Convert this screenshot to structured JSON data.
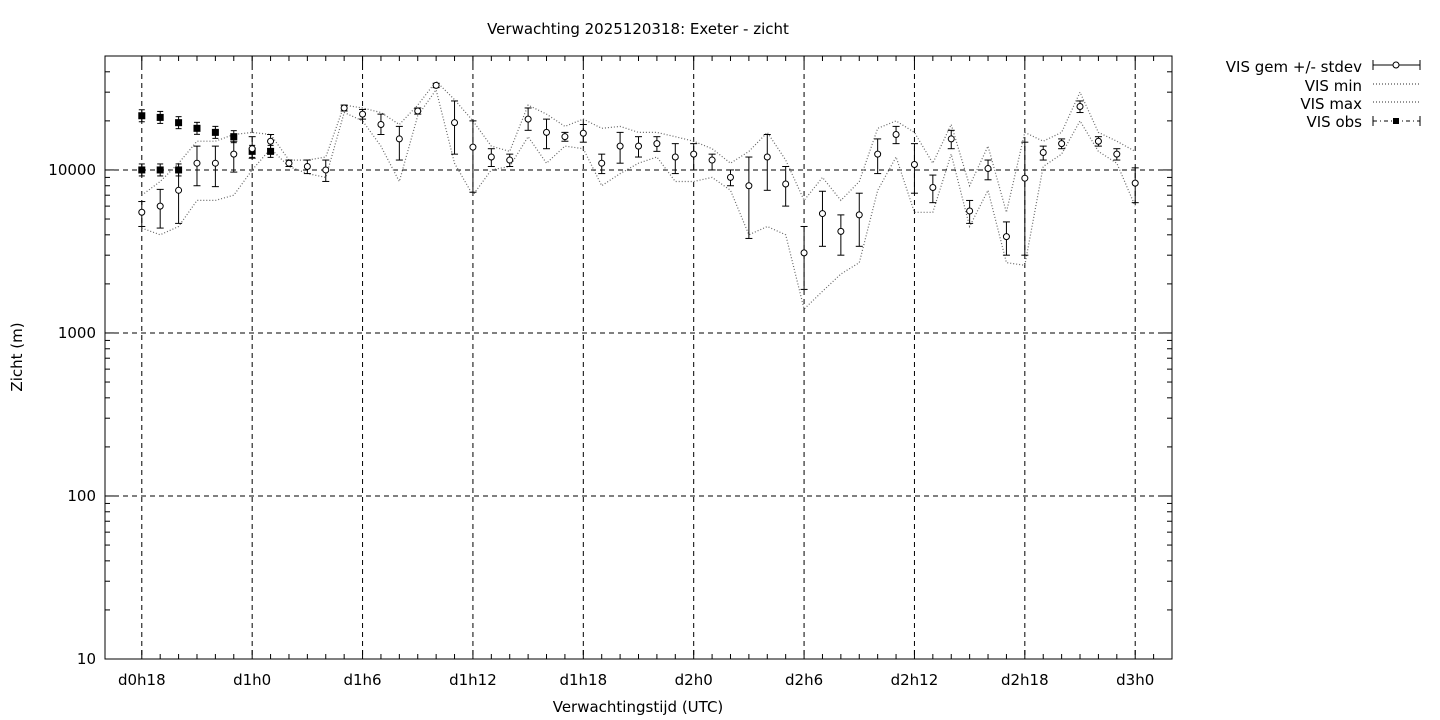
{
  "chart_data": {
    "type": "line",
    "title": "Verwachting 2025120318: Exeter - zicht",
    "xlabel": "Verwachtingstijd (UTC)",
    "ylabel": "Zicht (m)",
    "yscale": "log",
    "ylim": [
      10,
      50000
    ],
    "xlim": [
      -2,
      56
    ],
    "y_ticks": [
      "10",
      "100",
      "1000",
      "10000"
    ],
    "x_ticks": [
      {
        "h": 0,
        "label": "d0h18"
      },
      {
        "h": 6,
        "label": "d1h0"
      },
      {
        "h": 12,
        "label": "d1h6"
      },
      {
        "h": 18,
        "label": "d1h12"
      },
      {
        "h": 24,
        "label": "d1h18"
      },
      {
        "h": 30,
        "label": "d2h0"
      },
      {
        "h": 36,
        "label": "d2h6"
      },
      {
        "h": 42,
        "label": "d2h12"
      },
      {
        "h": 48,
        "label": "d2h18"
      },
      {
        "h": 54,
        "label": "d3h0"
      }
    ],
    "grid": true,
    "legend_position": "outside-right",
    "legend": [
      "VIS gem +/- stdev",
      "VIS min",
      "VIS max",
      "VIS obs"
    ],
    "series": [
      {
        "name": "VIS gem +/- stdev",
        "points": [
          {
            "x": 0,
            "y": 5500,
            "lo": 4500,
            "hi": 6400
          },
          {
            "x": 1,
            "y": 6000,
            "lo": 4400,
            "hi": 7600
          },
          {
            "x": 2,
            "y": 7500,
            "lo": 4700,
            "hi": 10000
          },
          {
            "x": 3,
            "y": 11000,
            "lo": 8000,
            "hi": 14000
          },
          {
            "x": 4,
            "y": 11000,
            "lo": 7900,
            "hi": 14000
          },
          {
            "x": 5,
            "y": 12500,
            "lo": 9700,
            "hi": 15000
          },
          {
            "x": 6,
            "y": 13500,
            "lo": 11800,
            "hi": 16000
          },
          {
            "x": 7,
            "y": 15000,
            "lo": 13500,
            "hi": 16500
          },
          {
            "x": 8,
            "y": 11000,
            "lo": 10500,
            "hi": 11500
          },
          {
            "x": 9,
            "y": 10500,
            "lo": 9500,
            "hi": 11500
          },
          {
            "x": 10,
            "y": 10000,
            "lo": 8500,
            "hi": 11500
          },
          {
            "x": 11,
            "y": 24000,
            "lo": 23000,
            "hi": 25000
          },
          {
            "x": 12,
            "y": 22000,
            "lo": 20500,
            "hi": 23500
          },
          {
            "x": 13,
            "y": 19000,
            "lo": 16500,
            "hi": 22000
          },
          {
            "x": 14,
            "y": 15500,
            "lo": 11500,
            "hi": 18500
          },
          {
            "x": 15,
            "y": 23000,
            "lo": 22000,
            "hi": 24000
          },
          {
            "x": 16,
            "y": 33000,
            "lo": 32000,
            "hi": 34000
          },
          {
            "x": 17,
            "y": 19500,
            "lo": 12500,
            "hi": 26500
          },
          {
            "x": 18,
            "y": 13800,
            "lo": 7300,
            "hi": 20000
          },
          {
            "x": 19,
            "y": 12000,
            "lo": 10500,
            "hi": 13500
          },
          {
            "x": 20,
            "y": 11500,
            "lo": 10500,
            "hi": 12500
          },
          {
            "x": 21,
            "y": 20500,
            "lo": 17500,
            "hi": 24000
          },
          {
            "x": 22,
            "y": 17000,
            "lo": 13500,
            "hi": 20500
          },
          {
            "x": 23,
            "y": 16000,
            "lo": 15000,
            "hi": 17000
          },
          {
            "x": 24,
            "y": 16800,
            "lo": 14800,
            "hi": 19000
          },
          {
            "x": 25,
            "y": 11000,
            "lo": 9500,
            "hi": 12500
          },
          {
            "x": 26,
            "y": 14000,
            "lo": 11000,
            "hi": 17000
          },
          {
            "x": 27,
            "y": 14000,
            "lo": 12000,
            "hi": 16000
          },
          {
            "x": 28,
            "y": 14500,
            "lo": 13000,
            "hi": 16000
          },
          {
            "x": 29,
            "y": 12000,
            "lo": 9500,
            "hi": 14500
          },
          {
            "x": 30,
            "y": 12500,
            "lo": 10000,
            "hi": 14500
          },
          {
            "x": 31,
            "y": 11500,
            "lo": 10000,
            "hi": 12500
          },
          {
            "x": 32,
            "y": 9000,
            "lo": 8000,
            "hi": 10000
          },
          {
            "x": 33,
            "y": 8000,
            "lo": 3800,
            "hi": 12000
          },
          {
            "x": 34,
            "y": 12000,
            "lo": 7500,
            "hi": 16500
          },
          {
            "x": 35,
            "y": 8200,
            "lo": 6000,
            "hi": 10500
          },
          {
            "x": 36,
            "y": 3100,
            "lo": 1850,
            "hi": 4500
          },
          {
            "x": 37,
            "y": 5400,
            "lo": 3400,
            "hi": 7400
          },
          {
            "x": 38,
            "y": 4200,
            "lo": 3000,
            "hi": 5300
          },
          {
            "x": 39,
            "y": 5300,
            "lo": 3400,
            "hi": 7200
          },
          {
            "x": 40,
            "y": 12500,
            "lo": 9500,
            "hi": 15500
          },
          {
            "x": 41,
            "y": 16500,
            "lo": 14500,
            "hi": 18500
          },
          {
            "x": 42,
            "y": 10800,
            "lo": 7200,
            "hi": 14500
          },
          {
            "x": 43,
            "y": 7800,
            "lo": 6300,
            "hi": 9300
          },
          {
            "x": 44,
            "y": 15500,
            "lo": 13500,
            "hi": 17500
          },
          {
            "x": 45,
            "y": 5600,
            "lo": 4700,
            "hi": 6500
          },
          {
            "x": 46,
            "y": 10200,
            "lo": 8700,
            "hi": 11500
          },
          {
            "x": 47,
            "y": 3900,
            "lo": 3000,
            "hi": 4800
          },
          {
            "x": 48,
            "y": 8900,
            "lo": 3000,
            "hi": 14800
          },
          {
            "x": 49,
            "y": 12800,
            "lo": 11500,
            "hi": 14000
          },
          {
            "x": 50,
            "y": 14500,
            "lo": 13500,
            "hi": 15500
          },
          {
            "x": 51,
            "y": 24500,
            "lo": 22500,
            "hi": 26500
          },
          {
            "x": 52,
            "y": 15000,
            "lo": 14000,
            "hi": 16000
          },
          {
            "x": 53,
            "y": 12500,
            "lo": 11500,
            "hi": 13500
          },
          {
            "x": 54,
            "y": 8300,
            "lo": 6300,
            "hi": 10300
          }
        ]
      },
      {
        "name": "VIS min",
        "x": [
          0,
          1,
          2,
          3,
          4,
          5,
          6,
          7,
          8,
          9,
          10,
          11,
          12,
          13,
          14,
          15,
          16,
          17,
          18,
          19,
          20,
          21,
          22,
          23,
          24,
          25,
          26,
          27,
          28,
          29,
          30,
          31,
          32,
          33,
          34,
          35,
          36,
          37,
          38,
          39,
          40,
          41,
          42,
          43,
          44,
          45,
          46,
          47,
          48,
          49,
          50,
          51,
          52,
          53,
          54
        ],
        "y": [
          4400,
          4000,
          4500,
          6500,
          6500,
          7000,
          10000,
          13500,
          10500,
          9500,
          9000,
          22500,
          20000,
          14000,
          8500,
          21500,
          31000,
          11000,
          7000,
          10000,
          10500,
          16000,
          11000,
          14000,
          13500,
          8000,
          9500,
          11000,
          12000,
          8500,
          8500,
          9000,
          7500,
          4000,
          4500,
          4000,
          1400,
          1800,
          2300,
          2700,
          7500,
          12000,
          5500,
          5500,
          12500,
          4500,
          7500,
          2700,
          2600,
          10500,
          12500,
          20000,
          13000,
          11000,
          6000
        ]
      },
      {
        "name": "VIS max",
        "x": [
          0,
          1,
          2,
          3,
          4,
          5,
          6,
          7,
          8,
          9,
          10,
          11,
          12,
          13,
          14,
          15,
          16,
          17,
          18,
          19,
          20,
          21,
          22,
          23,
          24,
          25,
          26,
          27,
          28,
          29,
          30,
          31,
          32,
          33,
          34,
          35,
          36,
          37,
          38,
          39,
          40,
          41,
          42,
          43,
          44,
          45,
          46,
          47,
          48,
          49,
          50,
          51,
          52,
          53,
          54
        ],
        "y": [
          7000,
          8500,
          11000,
          15000,
          15000,
          16500,
          17000,
          16500,
          11500,
          11500,
          12000,
          25000,
          24000,
          22500,
          19000,
          25000,
          35000,
          27000,
          20000,
          14000,
          13000,
          25000,
          22000,
          18500,
          20500,
          18000,
          18500,
          17000,
          17000,
          16000,
          15000,
          13500,
          11000,
          13000,
          17000,
          11500,
          6500,
          9000,
          6500,
          8500,
          18000,
          20000,
          17000,
          11000,
          19000,
          8000,
          14000,
          5500,
          17000,
          15000,
          17000,
          30000,
          17000,
          15000,
          13000
        ]
      },
      {
        "name": "VIS obs",
        "points": [
          {
            "x": 0,
            "y": 21500,
            "y2": 10000
          },
          {
            "x": 1,
            "y": 21000,
            "y2": 10000
          },
          {
            "x": 2,
            "y": 19500,
            "y2": 10000
          },
          {
            "x": 3,
            "y": 18000
          },
          {
            "x": 4,
            "y": 17000
          },
          {
            "x": 5,
            "y": 16000
          },
          {
            "x": 6,
            "y": 13000
          },
          {
            "x": 7,
            "y": 13000
          }
        ]
      }
    ]
  }
}
